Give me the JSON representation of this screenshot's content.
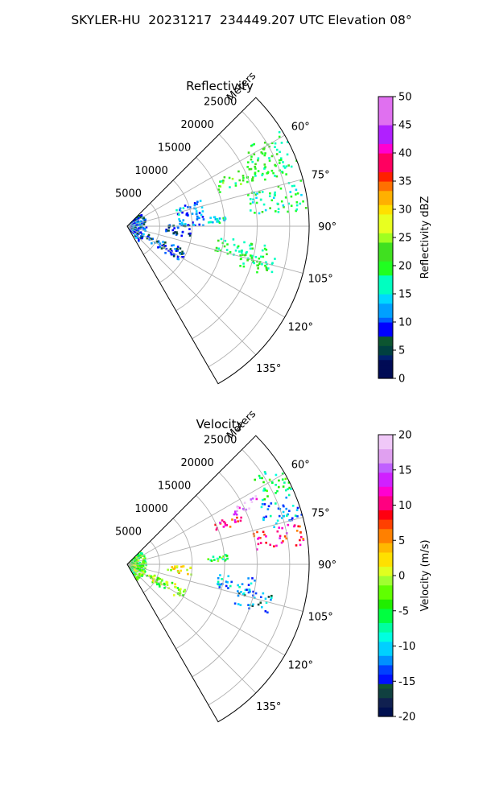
{
  "figure": {
    "title": "SKYLER-HU  20231217  234449.207 UTC Elevation 08°"
  },
  "chart_data": [
    {
      "type": "polar-sector-ppi",
      "title": "Reflectivity",
      "r_axis_label": "Meters",
      "r_ticks": [
        5000,
        10000,
        15000,
        20000,
        25000
      ],
      "r_max_m": 28000,
      "theta_range_deg": [
        45,
        150
      ],
      "theta_ticks": [
        "60°",
        "75°",
        "90°",
        "105°",
        "120°",
        "135°"
      ],
      "theta_tick_values": [
        60,
        75,
        90,
        105,
        120,
        135
      ],
      "grid": true,
      "colorbar": {
        "label": "Reflectivity dBZ",
        "min": 0,
        "max": 50,
        "ticks": [
          0,
          5,
          10,
          15,
          20,
          25,
          30,
          35,
          40,
          45,
          50
        ]
      },
      "echo_regions": [
        {
          "az": [
            57,
            72
          ],
          "range_m": [
            21000,
            28000
          ],
          "value": 19
        },
        {
          "az": [
            63,
            70
          ],
          "range_m": [
            15000,
            22000
          ],
          "value": 21
        },
        {
          "az": [
            75,
            85
          ],
          "range_m": [
            19000,
            28000
          ],
          "value": 18
        },
        {
          "az": [
            84,
            88
          ],
          "range_m": [
            12500,
            15500
          ],
          "value": 15
        },
        {
          "az": [
            97,
            106
          ],
          "range_m": [
            14000,
            22000
          ],
          "value": 18
        },
        {
          "az": [
            102,
            110
          ],
          "range_m": [
            18000,
            24000
          ],
          "value": 20
        },
        {
          "az": [
            45,
            145
          ],
          "range_m": [
            200,
            3000
          ],
          "value": 10
        },
        {
          "az": [
            112,
            125
          ],
          "range_m": [
            3500,
            10000
          ],
          "value": 9
        },
        {
          "az": [
            88,
            100
          ],
          "range_m": [
            6000,
            10000
          ],
          "value": 8
        },
        {
          "az": [
            70,
            90
          ],
          "range_m": [
            8000,
            12000
          ],
          "value": 12
        }
      ]
    },
    {
      "type": "polar-sector-ppi",
      "title": "Velocity",
      "r_axis_label": "Meters",
      "r_ticks": [
        5000,
        10000,
        15000,
        20000,
        25000
      ],
      "r_max_m": 28000,
      "theta_range_deg": [
        45,
        150
      ],
      "theta_ticks": [
        "60°",
        "75°",
        "90°",
        "105°",
        "120°",
        "135°"
      ],
      "theta_tick_values": [
        60,
        75,
        90,
        105,
        120,
        135
      ],
      "grid": true,
      "colorbar": {
        "label": "Velocity (m/s)",
        "min": -20,
        "max": 20,
        "ticks": [
          -20,
          -15,
          -10,
          -5,
          0,
          5,
          10,
          15,
          20
        ]
      },
      "echo_regions": [
        {
          "az": [
            56,
            66
          ],
          "range_m": [
            23000,
            28000
          ],
          "value": -6
        },
        {
          "az": [
            66,
            76
          ],
          "range_m": [
            22000,
            28000
          ],
          "value": -11
        },
        {
          "az": [
            62,
            66
          ],
          "range_m": [
            18000,
            22500
          ],
          "value": 16
        },
        {
          "az": [
            65,
            70
          ],
          "range_m": [
            14500,
            19000
          ],
          "value": 10
        },
        {
          "az": [
            76,
            84
          ],
          "range_m": [
            20000,
            27500
          ],
          "value": 9
        },
        {
          "az": [
            96,
            104
          ],
          "range_m": [
            14000,
            20000
          ],
          "value": -11
        },
        {
          "az": [
            102,
            110
          ],
          "range_m": [
            17000,
            23000
          ],
          "value": -13
        },
        {
          "az": [
            84,
            88
          ],
          "range_m": [
            12500,
            15500
          ],
          "value": -5
        },
        {
          "az": [
            45,
            150
          ],
          "range_m": [
            200,
            3000
          ],
          "value": -3
        },
        {
          "az": [
            112,
            125
          ],
          "range_m": [
            3500,
            10000
          ],
          "value": -2
        },
        {
          "az": [
            92,
            100
          ],
          "range_m": [
            6000,
            10000
          ],
          "value": 1
        }
      ]
    }
  ]
}
